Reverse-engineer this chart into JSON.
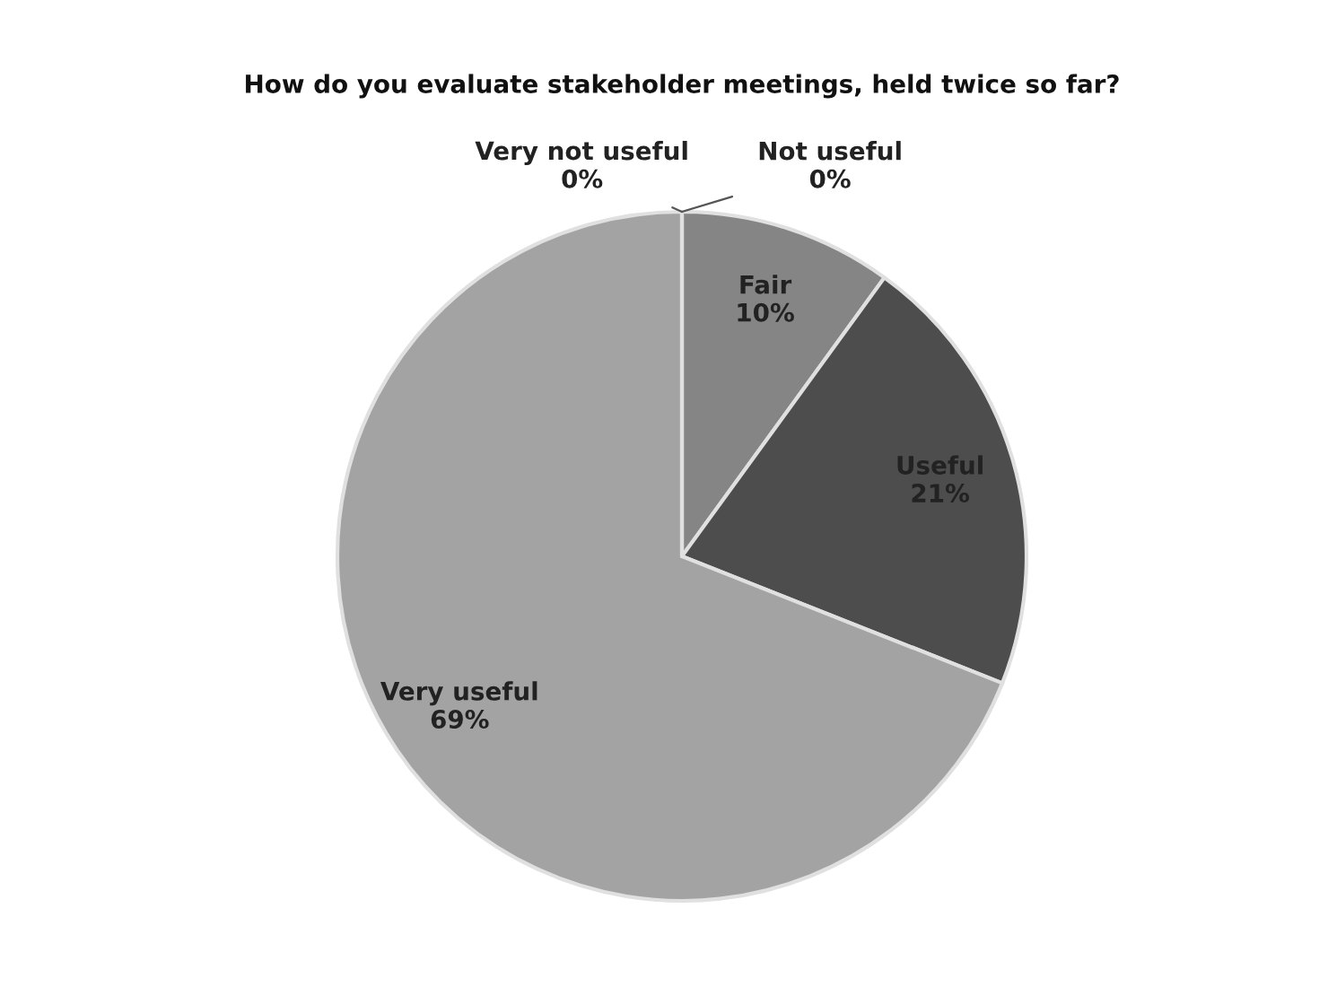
{
  "chart_data": {
    "type": "pie",
    "title": "How do you evaluate stakeholder meetings, held twice so far?",
    "categories": [
      "Not useful",
      "Fair",
      "Useful",
      "Very useful",
      "Very not useful"
    ],
    "values": [
      0,
      10,
      21,
      69,
      0
    ],
    "value_labels": [
      "0%",
      "10%",
      "21%",
      "69%",
      "0%"
    ],
    "colors": [
      "#5c5c5c",
      "#858585",
      "#4d4d4d",
      "#a3a3a3",
      "#c4c4c4"
    ],
    "legend": false
  }
}
